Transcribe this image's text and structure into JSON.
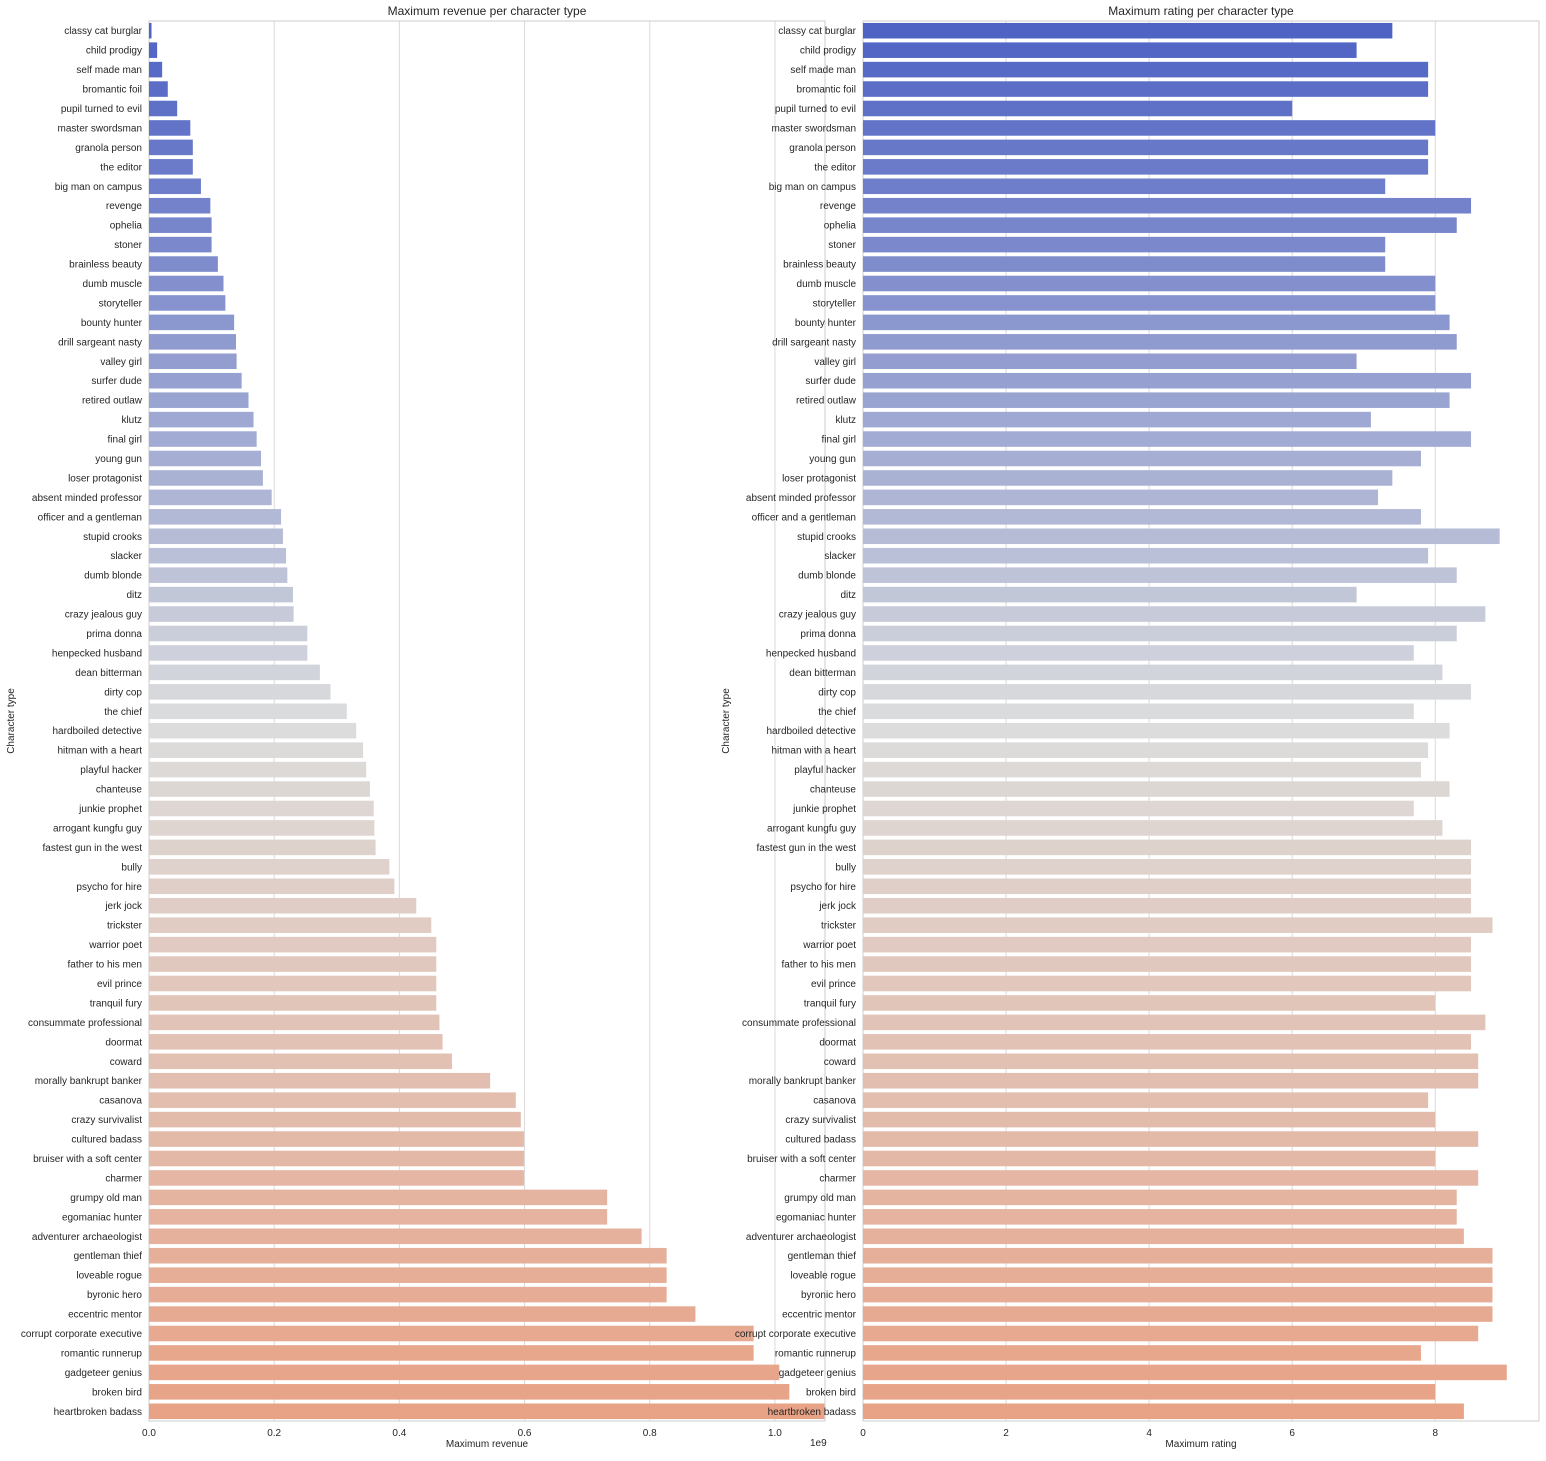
{
  "chart_data": [
    {
      "type": "bar",
      "orientation": "horizontal",
      "title": "Maximum revenue per character type",
      "xlabel": "Maximum revenue",
      "ylabel": "Character type",
      "x_offset_label": "1e9",
      "xlim": [
        0,
        1.08
      ],
      "xticks": [
        "0.0",
        "0.2",
        "0.4",
        "0.6",
        "0.8",
        "1.0"
      ],
      "xtick_values": [
        0,
        0.2,
        0.4,
        0.6,
        0.8,
        1.0
      ],
      "grid": "vertical",
      "categories": [
        "classy cat burglar",
        "child prodigy",
        "self made man",
        "bromantic foil",
        "pupil turned to evil",
        "master swordsman",
        "granola person",
        "the editor",
        "big man on campus",
        "revenge",
        "ophelia",
        "stoner",
        "brainless beauty",
        "dumb muscle",
        "storyteller",
        "bounty hunter",
        "drill sargeant nasty",
        "valley girl",
        "surfer dude",
        "retired outlaw",
        "klutz",
        "final girl",
        "young gun",
        "loser protagonist",
        "absent minded professor",
        "officer and a gentleman",
        "stupid crooks",
        "slacker",
        "dumb blonde",
        "ditz",
        "crazy jealous guy",
        "prima donna",
        "henpecked husband",
        "dean bitterman",
        "dirty cop",
        "the chief",
        "hardboiled detective",
        "hitman with a heart",
        "playful hacker",
        "chanteuse",
        "junkie prophet",
        "arrogant kungfu guy",
        "fastest gun in the west",
        "bully",
        "psycho for hire",
        "jerk jock",
        "trickster",
        "warrior poet",
        "father to his men",
        "evil prince",
        "tranquil fury",
        "consummate professional",
        "doormat",
        "coward",
        "morally bankrupt banker",
        "casanova",
        "crazy survivalist",
        "cultured badass",
        "bruiser with a soft center",
        "charmer",
        "grumpy old man",
        "egomaniac hunter",
        "adventurer archaeologist",
        "gentleman thief",
        "loveable rogue",
        "byronic hero",
        "eccentric mentor",
        "corrupt corporate executive",
        "romantic runnerup",
        "gadgeteer genius",
        "broken bird",
        "heartbroken badass"
      ],
      "values": [
        0.004,
        0.013,
        0.021,
        0.03,
        0.045,
        0.066,
        0.07,
        0.07,
        0.083,
        0.098,
        0.1,
        0.1,
        0.11,
        0.119,
        0.122,
        0.136,
        0.139,
        0.14,
        0.148,
        0.159,
        0.167,
        0.172,
        0.179,
        0.182,
        0.196,
        0.211,
        0.214,
        0.219,
        0.221,
        0.23,
        0.231,
        0.253,
        0.253,
        0.273,
        0.29,
        0.316,
        0.331,
        0.342,
        0.347,
        0.353,
        0.359,
        0.36,
        0.362,
        0.384,
        0.392,
        0.427,
        0.451,
        0.459,
        0.459,
        0.459,
        0.459,
        0.464,
        0.469,
        0.484,
        0.545,
        0.586,
        0.594,
        0.599,
        0.599,
        0.599,
        0.732,
        0.732,
        0.787,
        0.827,
        0.827,
        0.827,
        0.873,
        0.966,
        0.966,
        1.007,
        1.023,
        1.079
      ]
    },
    {
      "type": "bar",
      "orientation": "horizontal",
      "title": "Maximum rating per character type",
      "xlabel": "Maximum rating",
      "ylabel": "Character type",
      "xlim": [
        0,
        9.45
      ],
      "xticks": [
        "0",
        "2",
        "4",
        "6",
        "8"
      ],
      "xtick_values": [
        0,
        2,
        4,
        6,
        8
      ],
      "grid": "vertical",
      "categories": [
        "classy cat burglar",
        "child prodigy",
        "self made man",
        "bromantic foil",
        "pupil turned to evil",
        "master swordsman",
        "granola person",
        "the editor",
        "big man on campus",
        "revenge",
        "ophelia",
        "stoner",
        "brainless beauty",
        "dumb muscle",
        "storyteller",
        "bounty hunter",
        "drill sargeant nasty",
        "valley girl",
        "surfer dude",
        "retired outlaw",
        "klutz",
        "final girl",
        "young gun",
        "loser protagonist",
        "absent minded professor",
        "officer and a gentleman",
        "stupid crooks",
        "slacker",
        "dumb blonde",
        "ditz",
        "crazy jealous guy",
        "prima donna",
        "henpecked husband",
        "dean bitterman",
        "dirty cop",
        "the chief",
        "hardboiled detective",
        "hitman with a heart",
        "playful hacker",
        "chanteuse",
        "junkie prophet",
        "arrogant kungfu guy",
        "fastest gun in the west",
        "bully",
        "psycho for hire",
        "jerk jock",
        "trickster",
        "warrior poet",
        "father to his men",
        "evil prince",
        "tranquil fury",
        "consummate professional",
        "doormat",
        "coward",
        "morally bankrupt banker",
        "casanova",
        "crazy survivalist",
        "cultured badass",
        "bruiser with a soft center",
        "charmer",
        "grumpy old man",
        "egomaniac hunter",
        "adventurer archaeologist",
        "gentleman thief",
        "loveable rogue",
        "byronic hero",
        "eccentric mentor",
        "corrupt corporate executive",
        "romantic runnerup",
        "gadgeteer genius",
        "broken bird",
        "heartbroken badass"
      ],
      "values": [
        7.4,
        6.9,
        7.9,
        7.9,
        6.0,
        8.0,
        7.9,
        7.9,
        7.3,
        8.5,
        8.3,
        7.3,
        7.3,
        8.0,
        8.0,
        8.2,
        8.3,
        6.9,
        8.5,
        8.2,
        7.1,
        8.5,
        7.8,
        7.4,
        7.2,
        7.8,
        8.9,
        7.9,
        8.3,
        6.9,
        8.7,
        8.3,
        7.7,
        8.1,
        8.5,
        7.7,
        8.2,
        7.9,
        7.8,
        8.2,
        7.7,
        8.1,
        8.5,
        8.5,
        8.5,
        8.5,
        8.8,
        8.5,
        8.5,
        8.5,
        8.0,
        8.7,
        8.5,
        8.6,
        8.6,
        7.9,
        8.0,
        8.6,
        8.0,
        8.6,
        8.3,
        8.3,
        8.4,
        8.8,
        8.8,
        8.8,
        8.8,
        8.6,
        7.8,
        9.0,
        8.0,
        8.4
      ]
    }
  ],
  "palette": {
    "name": "coolwarm",
    "start": "#4f63c4",
    "mid": "#dcdddd",
    "end": "#e8a286"
  }
}
